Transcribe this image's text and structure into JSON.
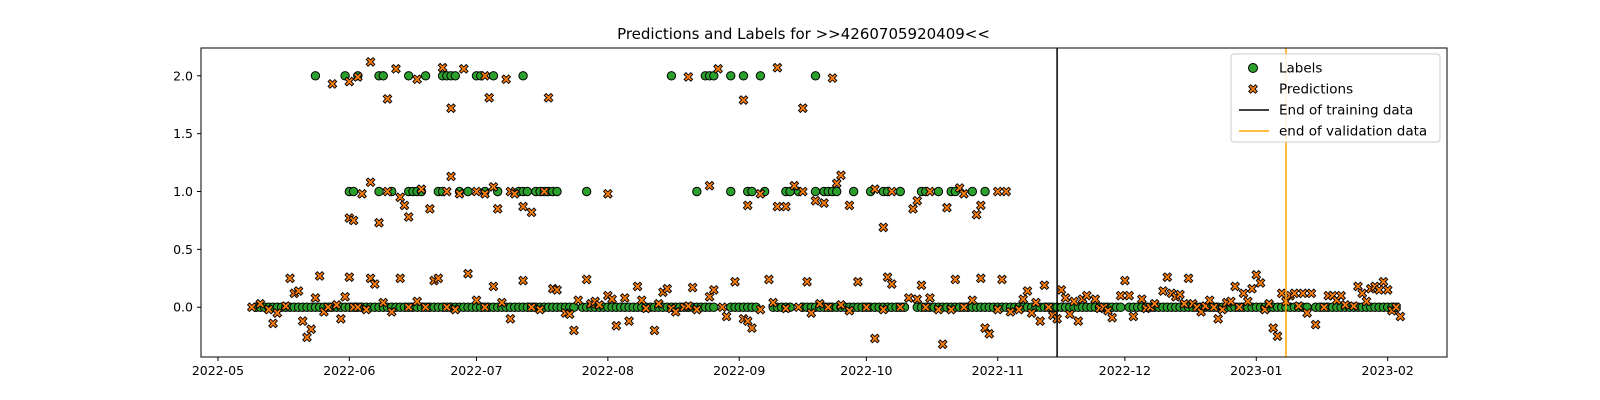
{
  "chart_data": {
    "type": "scatter",
    "title": "Predictions and Labels for >>4260705920409<<",
    "xlabel": "",
    "ylabel": "",
    "x_range": [
      "2022-04-27",
      "2023-02-15"
    ],
    "y_range": [
      -0.43,
      2.24
    ],
    "grid": false,
    "legend_position": "top-right",
    "x_ticks": [
      "2022-05",
      "2022-06",
      "2022-07",
      "2022-08",
      "2022-09",
      "2022-10",
      "2022-11",
      "2022-12",
      "2023-01",
      "2023-02"
    ],
    "y_ticks": [
      "0.0",
      "0.5",
      "1.0",
      "1.5",
      "2.0"
    ],
    "colors": {
      "labels": "#2ca02c",
      "predictions": "#ff7f0e",
      "training_line": "#000000",
      "validation_line": "#ffa500"
    },
    "vlines": [
      {
        "name": "End of training data",
        "date": "2022-11-15"
      },
      {
        "name": "end of validation data",
        "date": "2023-01-08"
      }
    ],
    "legend": [
      "Labels",
      "Predictions",
      "End of training data",
      "end of validation data"
    ],
    "labels_zero": [
      [
        "2022-05-10",
        "2022-07-24"
      ],
      [
        "2022-07-26",
        "2022-08-26"
      ],
      [
        "2022-08-30",
        "2022-09-05"
      ],
      [
        "2022-09-09",
        "2022-09-13"
      ],
      [
        "2022-09-16",
        "2022-10-10"
      ],
      [
        "2022-10-13",
        "2022-11-30"
      ],
      [
        "2022-12-02",
        "2023-01-13"
      ],
      [
        "2023-01-15",
        "2023-02-03"
      ]
    ],
    "labels_one": [
      "2022-06-01",
      "2022-06-02",
      "2022-06-08",
      "2022-06-11",
      "2022-06-15",
      "2022-06-16",
      "2022-06-17",
      "2022-06-18",
      "2022-06-22",
      "2022-06-23",
      "2022-06-27",
      "2022-06-29",
      "2022-07-03",
      "2022-07-06",
      "2022-07-11",
      "2022-07-12",
      "2022-07-13",
      "2022-07-15",
      "2022-07-16",
      "2022-07-17",
      "2022-07-18",
      "2022-07-19",
      "2022-07-20",
      "2022-07-27",
      "2022-08-22",
      "2022-08-30",
      "2022-09-03",
      "2022-09-04",
      "2022-09-07",
      "2022-09-12",
      "2022-09-13",
      "2022-09-15",
      "2022-09-19",
      "2022-09-21",
      "2022-09-22",
      "2022-09-23",
      "2022-09-24",
      "2022-09-28",
      "2022-10-02",
      "2022-10-05",
      "2022-10-06",
      "2022-10-09",
      "2022-10-14",
      "2022-10-15",
      "2022-10-18",
      "2022-10-21",
      "2022-10-22",
      "2022-10-26",
      "2022-10-29"
    ],
    "labels_two": [
      "2022-05-24",
      "2022-05-31",
      "2022-06-03",
      "2022-06-08",
      "2022-06-09",
      "2022-06-15",
      "2022-06-19",
      "2022-06-23",
      "2022-06-24",
      "2022-06-25",
      "2022-06-26",
      "2022-07-01",
      "2022-07-02",
      "2022-07-05",
      "2022-07-12",
      "2022-08-16",
      "2022-08-24",
      "2022-08-25",
      "2022-08-26",
      "2022-08-30",
      "2022-09-02",
      "2022-09-06",
      "2022-09-19"
    ],
    "predictions": [
      [
        "2022-05-09",
        0.0
      ],
      [
        "2022-05-11",
        0.03
      ],
      [
        "2022-05-13",
        -0.02
      ],
      [
        "2022-05-14",
        -0.14
      ],
      [
        "2022-05-15",
        -0.05
      ],
      [
        "2022-05-17",
        0.01
      ],
      [
        "2022-05-18",
        0.25
      ],
      [
        "2022-05-19",
        0.12
      ],
      [
        "2022-05-20",
        0.14
      ],
      [
        "2022-05-21",
        -0.12
      ],
      [
        "2022-05-22",
        -0.26
      ],
      [
        "2022-05-23",
        -0.19
      ],
      [
        "2022-05-24",
        0.08
      ],
      [
        "2022-05-25",
        0.27
      ],
      [
        "2022-05-26",
        -0.04
      ],
      [
        "2022-05-27",
        0.0
      ],
      [
        "2022-05-29",
        0.02
      ],
      [
        "2022-05-30",
        -0.1
      ],
      [
        "2022-05-31",
        0.09
      ],
      [
        "2022-06-01",
        0.26
      ],
      [
        "2022-06-02",
        0.0
      ],
      [
        "2022-06-03",
        0.0
      ],
      [
        "2022-06-05",
        -0.02
      ],
      [
        "2022-06-06",
        0.25
      ],
      [
        "2022-06-07",
        0.2
      ],
      [
        "2022-06-09",
        0.04
      ],
      [
        "2022-06-11",
        -0.04
      ],
      [
        "2022-06-13",
        0.25
      ],
      [
        "2022-06-15",
        0.0
      ],
      [
        "2022-06-17",
        0.05
      ],
      [
        "2022-06-19",
        0.0
      ],
      [
        "2022-06-21",
        0.23
      ],
      [
        "2022-06-22",
        0.25
      ],
      [
        "2022-06-24",
        0.0
      ],
      [
        "2022-06-26",
        -0.02
      ],
      [
        "2022-06-29",
        0.29
      ],
      [
        "2022-07-01",
        0.06
      ],
      [
        "2022-07-03",
        0.0
      ],
      [
        "2022-07-05",
        0.18
      ],
      [
        "2022-07-07",
        0.04
      ],
      [
        "2022-07-09",
        -0.1
      ],
      [
        "2022-07-12",
        0.23
      ],
      [
        "2022-07-14",
        0.0
      ],
      [
        "2022-07-16",
        -0.02
      ],
      [
        "2022-07-19",
        0.16
      ],
      [
        "2022-07-20",
        0.15
      ],
      [
        "2022-07-22",
        -0.05
      ],
      [
        "2022-07-23",
        -0.06
      ],
      [
        "2022-07-24",
        -0.2
      ],
      [
        "2022-07-25",
        0.06
      ],
      [
        "2022-07-27",
        0.24
      ],
      [
        "2022-07-28",
        0.03
      ],
      [
        "2022-07-29",
        0.05
      ],
      [
        "2022-07-30",
        0.02
      ],
      [
        "2022-08-01",
        0.1
      ],
      [
        "2022-08-02",
        0.07
      ],
      [
        "2022-08-03",
        -0.16
      ],
      [
        "2022-08-05",
        0.08
      ],
      [
        "2022-08-06",
        -0.12
      ],
      [
        "2022-08-08",
        0.18
      ],
      [
        "2022-08-09",
        0.06
      ],
      [
        "2022-08-10",
        -0.01
      ],
      [
        "2022-08-12",
        -0.2
      ],
      [
        "2022-08-13",
        0.03
      ],
      [
        "2022-08-14",
        0.13
      ],
      [
        "2022-08-15",
        0.16
      ],
      [
        "2022-08-16",
        -0.01
      ],
      [
        "2022-08-17",
        -0.04
      ],
      [
        "2022-08-19",
        0.0
      ],
      [
        "2022-08-20",
        0.01
      ],
      [
        "2022-08-21",
        0.17
      ],
      [
        "2022-08-22",
        -0.02
      ],
      [
        "2022-08-25",
        0.09
      ],
      [
        "2022-08-26",
        0.15
      ],
      [
        "2022-08-28",
        0.0
      ],
      [
        "2022-08-29",
        -0.08
      ],
      [
        "2022-08-31",
        0.22
      ],
      [
        "2022-09-02",
        -0.1
      ],
      [
        "2022-09-03",
        -0.12
      ],
      [
        "2022-09-04",
        -0.18
      ],
      [
        "2022-09-06",
        -0.02
      ],
      [
        "2022-09-08",
        0.24
      ],
      [
        "2022-09-09",
        0.04
      ],
      [
        "2022-09-12",
        -0.01
      ],
      [
        "2022-09-15",
        0.0
      ],
      [
        "2022-09-17",
        0.22
      ],
      [
        "2022-09-18",
        -0.05
      ],
      [
        "2022-09-20",
        0.03
      ],
      [
        "2022-09-22",
        0.0
      ],
      [
        "2022-09-25",
        0.02
      ],
      [
        "2022-09-27",
        -0.03
      ],
      [
        "2022-09-29",
        0.22
      ],
      [
        "2022-10-01",
        0.0
      ],
      [
        "2022-10-03",
        -0.27
      ],
      [
        "2022-10-05",
        -0.02
      ],
      [
        "2022-10-06",
        0.26
      ],
      [
        "2022-10-07",
        0.2
      ],
      [
        "2022-10-09",
        0.0
      ],
      [
        "2022-10-11",
        0.08
      ],
      [
        "2022-10-13",
        0.07
      ],
      [
        "2022-10-14",
        0.19
      ],
      [
        "2022-10-15",
        0.0
      ],
      [
        "2022-10-16",
        0.08
      ],
      [
        "2022-10-18",
        -0.02
      ],
      [
        "2022-10-19",
        -0.32
      ],
      [
        "2022-10-21",
        -0.02
      ],
      [
        "2022-10-22",
        0.24
      ],
      [
        "2022-10-24",
        0.0
      ],
      [
        "2022-10-26",
        0.06
      ],
      [
        "2022-10-28",
        0.25
      ],
      [
        "2022-10-29",
        -0.18
      ],
      [
        "2022-10-30",
        -0.23
      ],
      [
        "2022-11-01",
        -0.02
      ],
      [
        "2022-11-02",
        0.24
      ],
      [
        "2022-11-04",
        -0.04
      ],
      [
        "2022-11-06",
        -0.02
      ],
      [
        "2022-11-07",
        0.07
      ],
      [
        "2022-11-08",
        0.14
      ],
      [
        "2022-11-09",
        -0.05
      ],
      [
        "2022-11-10",
        0.04
      ],
      [
        "2022-11-11",
        -0.12
      ],
      [
        "2022-11-12",
        0.19
      ],
      [
        "2022-11-13",
        0.0
      ],
      [
        "2022-11-14",
        -0.07
      ],
      [
        "2022-11-15",
        -0.1
      ],
      [
        "2022-11-16",
        0.15
      ],
      [
        "2022-11-17",
        0.08
      ],
      [
        "2022-11-18",
        -0.06
      ],
      [
        "2022-11-19",
        0.05
      ],
      [
        "2022-11-20",
        -0.12
      ],
      [
        "2022-11-21",
        0.07
      ],
      [
        "2022-11-22",
        0.1
      ],
      [
        "2022-11-24",
        0.07
      ],
      [
        "2022-11-25",
        -0.01
      ],
      [
        "2022-11-26",
        0.0
      ],
      [
        "2022-11-27",
        -0.03
      ],
      [
        "2022-11-28",
        -0.09
      ],
      [
        "2022-11-30",
        0.1
      ],
      [
        "2022-12-01",
        0.23
      ],
      [
        "2022-12-02",
        0.1
      ],
      [
        "2022-12-03",
        -0.08
      ],
      [
        "2022-12-05",
        0.07
      ],
      [
        "2022-12-06",
        -0.01
      ],
      [
        "2022-12-07",
        0.0
      ],
      [
        "2022-12-08",
        0.03
      ],
      [
        "2022-12-10",
        0.14
      ],
      [
        "2022-12-11",
        0.26
      ],
      [
        "2022-12-12",
        0.12
      ],
      [
        "2022-12-13",
        0.09
      ],
      [
        "2022-12-14",
        0.11
      ],
      [
        "2022-12-15",
        0.03
      ],
      [
        "2022-12-16",
        0.25
      ],
      [
        "2022-12-17",
        0.03
      ],
      [
        "2022-12-18",
        0.0
      ],
      [
        "2022-12-19",
        -0.04
      ],
      [
        "2022-12-20",
        0.01
      ],
      [
        "2022-12-21",
        0.06
      ],
      [
        "2022-12-22",
        0.0
      ],
      [
        "2022-12-23",
        -0.1
      ],
      [
        "2022-12-24",
        -0.02
      ],
      [
        "2022-12-25",
        0.04
      ],
      [
        "2022-12-26",
        0.05
      ],
      [
        "2022-12-27",
        0.18
      ],
      [
        "2022-12-28",
        0.0
      ],
      [
        "2022-12-29",
        0.12
      ],
      [
        "2022-12-30",
        0.05
      ],
      [
        "2022-12-31",
        0.16
      ],
      [
        "2023-01-01",
        0.28
      ],
      [
        "2023-01-02",
        0.21
      ],
      [
        "2023-01-03",
        -0.02
      ],
      [
        "2023-01-04",
        0.03
      ],
      [
        "2023-01-05",
        -0.18
      ],
      [
        "2023-01-06",
        -0.25
      ],
      [
        "2023-01-07",
        0.12
      ],
      [
        "2023-01-08",
        0.05
      ],
      [
        "2023-01-09",
        0.1
      ],
      [
        "2023-01-10",
        0.12
      ],
      [
        "2023-01-11",
        0.01
      ],
      [
        "2023-01-12",
        0.12
      ],
      [
        "2023-01-13",
        -0.05
      ],
      [
        "2023-01-14",
        0.12
      ],
      [
        "2023-01-15",
        -0.15
      ],
      [
        "2023-01-17",
        0.0
      ],
      [
        "2023-01-18",
        0.1
      ],
      [
        "2023-01-19",
        0.1
      ],
      [
        "2023-01-20",
        0.06
      ],
      [
        "2023-01-21",
        0.1
      ],
      [
        "2023-01-22",
        0.02
      ],
      [
        "2023-01-24",
        0.01
      ],
      [
        "2023-01-25",
        0.18
      ],
      [
        "2023-01-26",
        0.12
      ],
      [
        "2023-01-27",
        0.05
      ],
      [
        "2023-01-28",
        0.16
      ],
      [
        "2023-01-29",
        0.18
      ],
      [
        "2023-01-30",
        0.15
      ],
      [
        "2023-01-31",
        0.22
      ],
      [
        "2023-02-01",
        0.15
      ],
      [
        "2023-02-02",
        -0.03
      ],
      [
        "2023-02-03",
        0.0
      ],
      [
        "2023-02-04",
        -0.08
      ],
      [
        "2022-06-01",
        0.77
      ],
      [
        "2022-06-02",
        0.75
      ],
      [
        "2022-06-04",
        0.98
      ],
      [
        "2022-06-06",
        1.08
      ],
      [
        "2022-06-08",
        0.73
      ],
      [
        "2022-06-10",
        1.0
      ],
      [
        "2022-06-13",
        0.95
      ],
      [
        "2022-06-14",
        0.88
      ],
      [
        "2022-06-15",
        0.78
      ],
      [
        "2022-06-18",
        1.02
      ],
      [
        "2022-06-20",
        0.85
      ],
      [
        "2022-06-24",
        1.0
      ],
      [
        "2022-06-25",
        1.13
      ],
      [
        "2022-06-27",
        0.98
      ],
      [
        "2022-07-01",
        1.0
      ],
      [
        "2022-07-03",
        0.98
      ],
      [
        "2022-07-05",
        1.04
      ],
      [
        "2022-07-06",
        0.85
      ],
      [
        "2022-07-09",
        1.0
      ],
      [
        "2022-07-10",
        0.98
      ],
      [
        "2022-07-12",
        0.87
      ],
      [
        "2022-07-14",
        0.82
      ],
      [
        "2022-07-17",
        1.0
      ],
      [
        "2022-08-01",
        0.98
      ],
      [
        "2022-08-25",
        1.05
      ],
      [
        "2022-09-03",
        0.88
      ],
      [
        "2022-09-06",
        0.98
      ],
      [
        "2022-09-10",
        0.87
      ],
      [
        "2022-09-12",
        0.87
      ],
      [
        "2022-09-14",
        1.05
      ],
      [
        "2022-09-16",
        1.0
      ],
      [
        "2022-09-19",
        0.92
      ],
      [
        "2022-09-21",
        0.9
      ],
      [
        "2022-09-24",
        1.07
      ],
      [
        "2022-09-25",
        1.14
      ],
      [
        "2022-09-27",
        0.88
      ],
      [
        "2022-10-03",
        1.02
      ],
      [
        "2022-10-05",
        0.69
      ],
      [
        "2022-10-07",
        1.0
      ],
      [
        "2022-10-12",
        0.85
      ],
      [
        "2022-10-13",
        0.92
      ],
      [
        "2022-10-16",
        1.0
      ],
      [
        "2022-10-20",
        0.86
      ],
      [
        "2022-10-23",
        1.03
      ],
      [
        "2022-10-24",
        0.98
      ],
      [
        "2022-10-27",
        0.8
      ],
      [
        "2022-10-28",
        0.88
      ],
      [
        "2022-11-01",
        1.0
      ],
      [
        "2022-11-03",
        1.0
      ],
      [
        "2022-05-28",
        1.93
      ],
      [
        "2022-06-01",
        1.95
      ],
      [
        "2022-06-03",
        1.99
      ],
      [
        "2022-06-06",
        2.12
      ],
      [
        "2022-06-10",
        1.8
      ],
      [
        "2022-06-12",
        2.06
      ],
      [
        "2022-06-17",
        1.97
      ],
      [
        "2022-06-23",
        2.07
      ],
      [
        "2022-06-25",
        1.72
      ],
      [
        "2022-06-28",
        2.06
      ],
      [
        "2022-07-03",
        2.0
      ],
      [
        "2022-07-04",
        1.81
      ],
      [
        "2022-07-08",
        1.97
      ],
      [
        "2022-07-18",
        1.81
      ],
      [
        "2022-08-20",
        1.99
      ],
      [
        "2022-08-27",
        2.06
      ],
      [
        "2022-09-02",
        1.79
      ],
      [
        "2022-09-10",
        2.07
      ],
      [
        "2022-09-16",
        1.72
      ],
      [
        "2022-09-23",
        1.98
      ]
    ]
  }
}
